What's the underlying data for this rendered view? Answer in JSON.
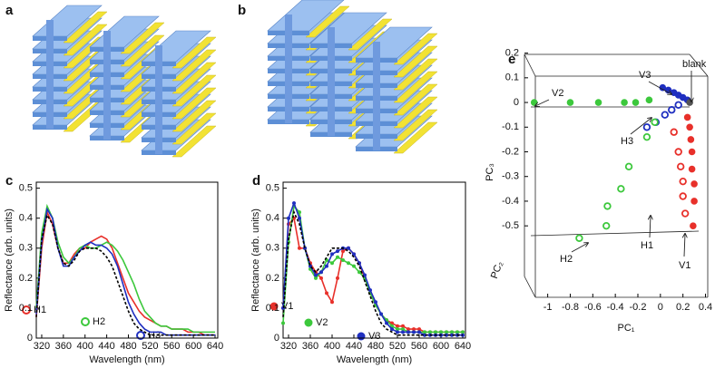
{
  "panel_labels": {
    "a": "a",
    "b": "b"
  },
  "chart_data": [
    {
      "type": "line",
      "label": "c",
      "xlabel": "Wavelength (nm)",
      "ylabel": "Reflectance (arb. units)",
      "x": [
        310,
        320,
        330,
        340,
        350,
        360,
        370,
        380,
        390,
        400,
        410,
        420,
        430,
        440,
        450,
        460,
        470,
        480,
        490,
        500,
        510,
        520,
        530,
        540,
        550,
        560,
        570,
        580,
        590,
        600,
        610,
        620,
        630,
        640
      ],
      "xlim": [
        310,
        645
      ],
      "ylim": [
        0,
        0.52
      ],
      "xticks": [
        320,
        360,
        400,
        440,
        480,
        520,
        560,
        600,
        640
      ],
      "yticks": [
        0,
        0.1,
        0.2,
        0.3,
        0.4,
        0.5
      ],
      "series": [
        {
          "name": "H1",
          "color": "#e8302a",
          "marker": "open",
          "values": [
            0.07,
            0.3,
            0.42,
            0.38,
            0.3,
            0.25,
            0.25,
            0.28,
            0.3,
            0.3,
            0.32,
            0.33,
            0.34,
            0.33,
            0.3,
            0.25,
            0.2,
            0.15,
            0.12,
            0.09,
            0.07,
            0.06,
            0.05,
            0.04,
            0.04,
            0.03,
            0.03,
            0.03,
            0.02,
            0.02,
            0.02,
            0.01,
            0.01,
            0.01
          ]
        },
        {
          "name": "H2",
          "color": "#3cc83c",
          "marker": "open",
          "values": [
            0.1,
            0.35,
            0.44,
            0.4,
            0.32,
            0.27,
            0.25,
            0.27,
            0.3,
            0.31,
            0.3,
            0.3,
            0.31,
            0.32,
            0.31,
            0.29,
            0.26,
            0.22,
            0.18,
            0.13,
            0.09,
            0.07,
            0.05,
            0.04,
            0.04,
            0.03,
            0.03,
            0.03,
            0.03,
            0.02,
            0.02,
            0.02,
            0.02,
            0.02
          ]
        },
        {
          "name": "H3",
          "color": "#1f2fc0",
          "marker": "open",
          "values": [
            0.08,
            0.32,
            0.43,
            0.4,
            0.3,
            0.24,
            0.24,
            0.27,
            0.29,
            0.31,
            0.32,
            0.31,
            0.31,
            0.3,
            0.28,
            0.24,
            0.18,
            0.12,
            0.08,
            0.05,
            0.03,
            0.02,
            0.02,
            0.02,
            0.01,
            0.01,
            0.01,
            0.01,
            0.01,
            0.01,
            0.01,
            0.01,
            0.01,
            0.01
          ]
        },
        {
          "color": "#000000",
          "dashed": true,
          "values": [
            0.07,
            0.33,
            0.41,
            0.38,
            0.3,
            0.25,
            0.24,
            0.26,
            0.29,
            0.3,
            0.3,
            0.3,
            0.29,
            0.27,
            0.24,
            0.19,
            0.14,
            0.09,
            0.05,
            0.03,
            0.02,
            0.01,
            0.01,
            0.01,
            0.01,
            0.01,
            0.01,
            0.01,
            0.01,
            0.01,
            0.01,
            0.01,
            0.01,
            0.01
          ]
        }
      ]
    },
    {
      "type": "line",
      "label": "d",
      "xlabel": "Wavelength (nm)",
      "ylabel": "Reflectance (arb. units)",
      "x": [
        310,
        320,
        330,
        340,
        350,
        360,
        370,
        380,
        390,
        400,
        410,
        420,
        430,
        440,
        450,
        460,
        470,
        480,
        490,
        500,
        510,
        520,
        530,
        540,
        550,
        560,
        570,
        580,
        590,
        600,
        610,
        620,
        630,
        640
      ],
      "xlim": [
        310,
        645
      ],
      "ylim": [
        0,
        0.52
      ],
      "xticks": [
        320,
        360,
        400,
        440,
        480,
        520,
        560,
        600,
        640
      ],
      "yticks": [
        0,
        0.1,
        0.2,
        0.3,
        0.4,
        0.5
      ],
      "series": [
        {
          "name": "V1",
          "color": "#e8302a",
          "marker": "filled",
          "values": [
            0.1,
            0.38,
            0.4,
            0.3,
            0.3,
            0.25,
            0.22,
            0.2,
            0.15,
            0.12,
            0.2,
            0.29,
            0.3,
            0.28,
            0.25,
            0.2,
            0.15,
            0.11,
            0.08,
            0.06,
            0.05,
            0.04,
            0.04,
            0.03,
            0.03,
            0.03,
            0.02,
            0.02,
            0.02,
            0.02,
            0.02,
            0.02,
            0.02,
            0.02
          ]
        },
        {
          "name": "V2",
          "color": "#3cc83c",
          "marker": "filled",
          "values": [
            0.05,
            0.32,
            0.44,
            0.42,
            0.3,
            0.23,
            0.2,
            0.22,
            0.26,
            0.25,
            0.27,
            0.26,
            0.25,
            0.24,
            0.22,
            0.2,
            0.15,
            0.11,
            0.08,
            0.06,
            0.04,
            0.03,
            0.03,
            0.02,
            0.02,
            0.02,
            0.02,
            0.02,
            0.02,
            0.02,
            0.02,
            0.02,
            0.02,
            0.02
          ]
        },
        {
          "name": "V3",
          "color": "#1f2fc0",
          "marker": "filled",
          "values": [
            0.1,
            0.4,
            0.45,
            0.4,
            0.3,
            0.24,
            0.21,
            0.22,
            0.24,
            0.28,
            0.29,
            0.3,
            0.3,
            0.28,
            0.25,
            0.21,
            0.16,
            0.12,
            0.08,
            0.05,
            0.03,
            0.02,
            0.02,
            0.02,
            0.02,
            0.02,
            0.01,
            0.01,
            0.01,
            0.01,
            0.01,
            0.01,
            0.01,
            0.01
          ]
        },
        {
          "color": "#000000",
          "dashed": true,
          "values": [
            0.07,
            0.33,
            0.42,
            0.38,
            0.3,
            0.24,
            0.22,
            0.24,
            0.27,
            0.3,
            0.3,
            0.3,
            0.29,
            0.27,
            0.24,
            0.19,
            0.14,
            0.09,
            0.05,
            0.03,
            0.02,
            0.01,
            0.01,
            0.01,
            0.01,
            0.01,
            0.01,
            0.01,
            0.01,
            0.01,
            0.01,
            0.01,
            0.01,
            0.01
          ]
        }
      ]
    },
    {
      "type": "scatter",
      "label": "e",
      "xlabel": "PC₁",
      "ylabel": "PC₃",
      "zlabel": "PC₂",
      "xlim": [
        -1.15,
        0.42
      ],
      "ylim": [
        -0.65,
        0.25
      ],
      "xticks": [
        -1,
        -0.8,
        -0.6,
        -0.4,
        -0.2,
        0,
        0.2,
        0.4
      ],
      "yticks": [
        0.2,
        0.1,
        0,
        -0.1,
        -0.2,
        -0.3,
        -0.4,
        -0.5
      ],
      "series": [
        {
          "name": "V2",
          "color": "#3cc83c",
          "marker": "filled",
          "x": [
            -1.12,
            -0.8,
            -0.55,
            -0.32,
            -0.22,
            -0.1
          ],
          "values": [
            0,
            0,
            0,
            0,
            0,
            0.01
          ]
        },
        {
          "name": "V3",
          "color": "#1f2fc0",
          "marker": "filled",
          "x": [
            0.02,
            0.07,
            0.12,
            0.16,
            0.2,
            0.24
          ],
          "values": [
            0.06,
            0.05,
            0.04,
            0.03,
            0.02,
            0.01
          ]
        },
        {
          "name": "blank",
          "color": "#555555",
          "marker": "filled",
          "x": [
            0.26
          ],
          "values": [
            0
          ]
        },
        {
          "name": "H3",
          "color": "#1f2fc0",
          "marker": "open",
          "x": [
            -0.12,
            -0.04,
            0.04,
            0.1,
            0.16
          ],
          "values": [
            -0.1,
            -0.08,
            -0.05,
            -0.03,
            -0.01
          ]
        },
        {
          "name": "H1",
          "color": "#e8302a",
          "marker": "open",
          "x": [
            0.12,
            0.16,
            0.18,
            0.2,
            0.2,
            0.22
          ],
          "values": [
            -0.12,
            -0.2,
            -0.26,
            -0.32,
            -0.38,
            -0.45
          ]
        },
        {
          "name": "H2",
          "color": "#3cc83c",
          "marker": "open",
          "x": [
            -0.05,
            -0.12,
            -0.28,
            -0.35,
            -0.47,
            -0.48,
            -0.72
          ],
          "values": [
            -0.08,
            -0.14,
            -0.26,
            -0.35,
            -0.42,
            -0.5,
            -0.55
          ]
        },
        {
          "name": "V1",
          "color": "#e8302a",
          "marker": "filled",
          "x": [
            0.24,
            0.26,
            0.27,
            0.28,
            0.28,
            0.3,
            0.3,
            0.29
          ],
          "values": [
            -0.06,
            -0.1,
            -0.15,
            -0.2,
            -0.27,
            -0.33,
            -0.4,
            -0.5
          ]
        }
      ]
    }
  ]
}
